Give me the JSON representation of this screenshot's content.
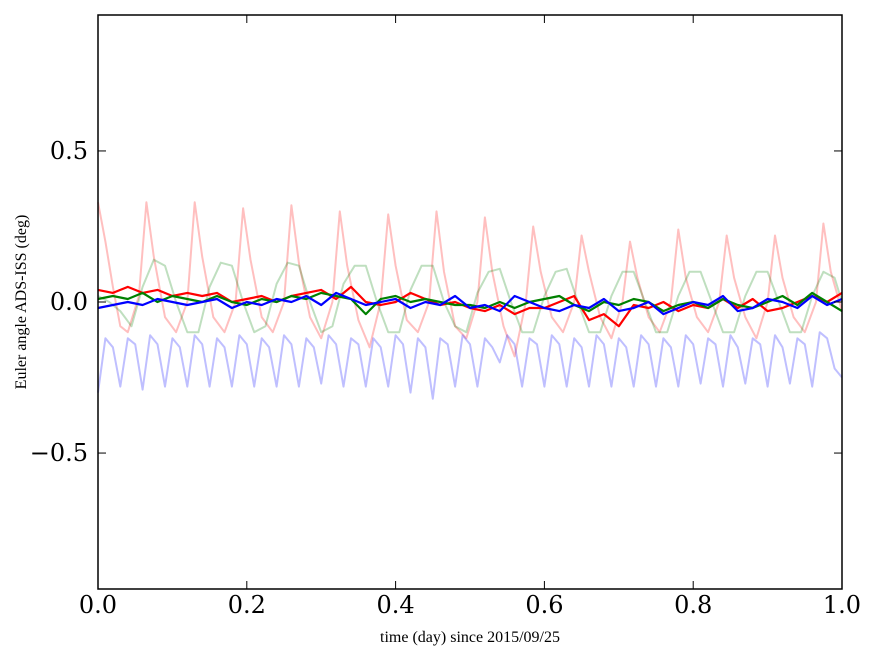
{
  "chart_data": {
    "type": "line",
    "title": "",
    "xlabel": "time (day) since 2015/09/25",
    "ylabel": "Euler angle ADS-ISS (deg)",
    "xlim": [
      0.0,
      1.0
    ],
    "ylim": [
      -0.95,
      0.95
    ],
    "xticks": [
      0.0,
      0.2,
      0.4,
      0.6,
      0.8,
      1.0
    ],
    "xtick_labels": [
      "0.0",
      "0.2",
      "0.4",
      "0.6",
      "0.8",
      "1.0"
    ],
    "yticks": [
      0.5,
      0.0,
      -0.5
    ],
    "ytick_labels": [
      "0.5",
      "0.0",
      "−0.5"
    ],
    "grid": false,
    "legend": "none",
    "series": [
      {
        "color": "#ff0000",
        "opacity": 0.25,
        "style": "raw",
        "x": [
          0.0,
          0.01,
          0.02,
          0.03,
          0.04,
          0.055,
          0.065,
          0.075,
          0.09,
          0.105,
          0.12,
          0.13,
          0.14,
          0.155,
          0.17,
          0.185,
          0.195,
          0.205,
          0.22,
          0.235,
          0.25,
          0.26,
          0.27,
          0.285,
          0.3,
          0.315,
          0.325,
          0.335,
          0.35,
          0.365,
          0.38,
          0.39,
          0.4,
          0.415,
          0.43,
          0.445,
          0.455,
          0.465,
          0.48,
          0.495,
          0.51,
          0.52,
          0.53,
          0.545,
          0.56,
          0.575,
          0.585,
          0.595,
          0.61,
          0.625,
          0.64,
          0.65,
          0.66,
          0.675,
          0.69,
          0.705,
          0.715,
          0.725,
          0.74,
          0.755,
          0.77,
          0.78,
          0.79,
          0.805,
          0.82,
          0.835,
          0.845,
          0.855,
          0.87,
          0.885,
          0.9,
          0.91,
          0.92,
          0.935,
          0.95,
          0.965,
          0.975,
          0.985,
          1.0
        ],
        "y": [
          0.33,
          0.2,
          0.05,
          -0.08,
          -0.1,
          0.02,
          0.33,
          0.15,
          -0.05,
          -0.1,
          0.0,
          0.33,
          0.15,
          -0.05,
          -0.1,
          0.0,
          0.31,
          0.14,
          -0.05,
          -0.1,
          0.0,
          0.32,
          0.13,
          -0.05,
          -0.12,
          0.0,
          0.3,
          0.12,
          -0.06,
          -0.15,
          0.0,
          0.29,
          0.12,
          -0.06,
          -0.1,
          0.0,
          0.3,
          0.1,
          -0.08,
          -0.12,
          0.0,
          0.28,
          0.1,
          -0.08,
          -0.18,
          0.0,
          0.25,
          0.1,
          -0.05,
          -0.1,
          0.0,
          0.22,
          0.1,
          -0.05,
          -0.12,
          0.0,
          0.2,
          0.08,
          -0.05,
          -0.1,
          0.0,
          0.24,
          0.08,
          -0.05,
          -0.1,
          0.0,
          0.22,
          0.08,
          -0.05,
          -0.12,
          0.0,
          0.22,
          0.08,
          -0.05,
          -0.1,
          0.0,
          0.26,
          0.1,
          -0.03
        ]
      },
      {
        "color": "#008000",
        "opacity": 0.25,
        "style": "raw",
        "x": [
          0.0,
          0.015,
          0.03,
          0.045,
          0.06,
          0.075,
          0.09,
          0.105,
          0.12,
          0.135,
          0.15,
          0.165,
          0.18,
          0.195,
          0.21,
          0.225,
          0.24,
          0.255,
          0.27,
          0.285,
          0.3,
          0.315,
          0.33,
          0.345,
          0.36,
          0.375,
          0.39,
          0.405,
          0.42,
          0.435,
          0.45,
          0.465,
          0.48,
          0.495,
          0.51,
          0.525,
          0.54,
          0.555,
          0.57,
          0.585,
          0.6,
          0.615,
          0.63,
          0.645,
          0.66,
          0.675,
          0.69,
          0.705,
          0.72,
          0.735,
          0.75,
          0.765,
          0.78,
          0.795,
          0.81,
          0.825,
          0.84,
          0.855,
          0.87,
          0.885,
          0.9,
          0.915,
          0.93,
          0.945,
          0.96,
          0.975,
          0.99,
          1.0
        ],
        "y": [
          0.02,
          0.0,
          -0.03,
          -0.08,
          0.05,
          0.14,
          0.12,
          0.0,
          -0.1,
          -0.1,
          0.05,
          0.13,
          0.12,
          0.0,
          -0.1,
          -0.08,
          0.06,
          0.13,
          0.12,
          0.0,
          -0.1,
          -0.08,
          0.06,
          0.12,
          0.12,
          0.0,
          -0.1,
          -0.1,
          0.04,
          0.12,
          0.12,
          0.0,
          -0.08,
          -0.1,
          0.03,
          0.1,
          0.11,
          0.0,
          -0.1,
          -0.1,
          0.02,
          0.1,
          0.11,
          0.0,
          -0.1,
          -0.1,
          0.02,
          0.1,
          0.1,
          0.0,
          -0.1,
          -0.1,
          0.02,
          0.1,
          0.1,
          0.0,
          -0.1,
          -0.1,
          0.02,
          0.1,
          0.1,
          0.0,
          -0.1,
          -0.1,
          0.02,
          0.1,
          0.08,
          0.0
        ]
      },
      {
        "color": "#0000ff",
        "opacity": 0.25,
        "style": "raw",
        "x": [
          0.0,
          0.01,
          0.02,
          0.03,
          0.04,
          0.05,
          0.06,
          0.07,
          0.08,
          0.09,
          0.1,
          0.11,
          0.12,
          0.13,
          0.14,
          0.15,
          0.16,
          0.17,
          0.18,
          0.19,
          0.2,
          0.21,
          0.22,
          0.23,
          0.24,
          0.25,
          0.26,
          0.27,
          0.28,
          0.29,
          0.3,
          0.31,
          0.32,
          0.33,
          0.34,
          0.35,
          0.36,
          0.37,
          0.38,
          0.39,
          0.4,
          0.41,
          0.42,
          0.43,
          0.44,
          0.45,
          0.46,
          0.47,
          0.48,
          0.49,
          0.5,
          0.51,
          0.52,
          0.53,
          0.54,
          0.55,
          0.56,
          0.57,
          0.58,
          0.59,
          0.6,
          0.61,
          0.62,
          0.63,
          0.64,
          0.65,
          0.66,
          0.67,
          0.68,
          0.69,
          0.7,
          0.71,
          0.72,
          0.73,
          0.74,
          0.75,
          0.76,
          0.77,
          0.78,
          0.79,
          0.8,
          0.81,
          0.82,
          0.83,
          0.84,
          0.85,
          0.86,
          0.87,
          0.88,
          0.89,
          0.9,
          0.91,
          0.92,
          0.93,
          0.94,
          0.95,
          0.96,
          0.97,
          0.98,
          0.99,
          1.0
        ],
        "y": [
          -0.3,
          -0.12,
          -0.15,
          -0.28,
          -0.12,
          -0.14,
          -0.29,
          -0.11,
          -0.14,
          -0.28,
          -0.12,
          -0.15,
          -0.28,
          -0.11,
          -0.14,
          -0.28,
          -0.12,
          -0.15,
          -0.28,
          -0.11,
          -0.14,
          -0.28,
          -0.12,
          -0.15,
          -0.28,
          -0.11,
          -0.14,
          -0.28,
          -0.12,
          -0.15,
          -0.27,
          -0.11,
          -0.14,
          -0.28,
          -0.12,
          -0.14,
          -0.28,
          -0.12,
          -0.15,
          -0.28,
          -0.11,
          -0.14,
          -0.3,
          -0.12,
          -0.15,
          -0.32,
          -0.12,
          -0.14,
          -0.28,
          -0.11,
          -0.14,
          -0.28,
          -0.12,
          -0.15,
          -0.2,
          -0.11,
          -0.14,
          -0.28,
          -0.12,
          -0.14,
          -0.28,
          -0.11,
          -0.14,
          -0.28,
          -0.12,
          -0.15,
          -0.28,
          -0.11,
          -0.14,
          -0.28,
          -0.12,
          -0.15,
          -0.28,
          -0.11,
          -0.14,
          -0.28,
          -0.12,
          -0.15,
          -0.28,
          -0.11,
          -0.14,
          -0.27,
          -0.12,
          -0.14,
          -0.28,
          -0.11,
          -0.15,
          -0.27,
          -0.12,
          -0.14,
          -0.28,
          -0.11,
          -0.15,
          -0.27,
          -0.12,
          -0.14,
          -0.28,
          -0.1,
          -0.12,
          -0.22,
          -0.25
        ]
      },
      {
        "color": "#ff0000",
        "opacity": 1.0,
        "style": "filtered",
        "x": [
          0.0,
          0.02,
          0.04,
          0.06,
          0.08,
          0.1,
          0.12,
          0.14,
          0.16,
          0.18,
          0.2,
          0.22,
          0.24,
          0.26,
          0.28,
          0.3,
          0.32,
          0.34,
          0.36,
          0.38,
          0.4,
          0.42,
          0.44,
          0.46,
          0.48,
          0.5,
          0.52,
          0.54,
          0.56,
          0.58,
          0.6,
          0.62,
          0.64,
          0.66,
          0.68,
          0.7,
          0.72,
          0.74,
          0.76,
          0.78,
          0.8,
          0.82,
          0.84,
          0.86,
          0.88,
          0.9,
          0.92,
          0.94,
          0.96,
          0.98,
          1.0
        ],
        "y": [
          0.04,
          0.03,
          0.05,
          0.03,
          0.04,
          0.02,
          0.03,
          0.02,
          0.03,
          0.0,
          0.01,
          0.02,
          0.0,
          0.02,
          0.03,
          0.04,
          0.01,
          0.05,
          0.0,
          -0.01,
          0.0,
          0.03,
          0.01,
          -0.01,
          0.0,
          -0.02,
          -0.03,
          -0.01,
          -0.04,
          -0.02,
          -0.02,
          0.0,
          0.02,
          -0.06,
          -0.04,
          -0.08,
          -0.01,
          -0.02,
          0.0,
          -0.03,
          -0.01,
          -0.02,
          0.01,
          -0.02,
          0.01,
          -0.03,
          -0.02,
          0.0,
          0.02,
          0.0,
          0.03
        ]
      },
      {
        "color": "#008000",
        "opacity": 1.0,
        "style": "filtered",
        "x": [
          0.0,
          0.02,
          0.04,
          0.06,
          0.08,
          0.1,
          0.12,
          0.14,
          0.16,
          0.18,
          0.2,
          0.22,
          0.24,
          0.26,
          0.28,
          0.3,
          0.32,
          0.34,
          0.36,
          0.38,
          0.4,
          0.42,
          0.44,
          0.46,
          0.48,
          0.5,
          0.52,
          0.54,
          0.56,
          0.58,
          0.6,
          0.62,
          0.64,
          0.66,
          0.68,
          0.7,
          0.72,
          0.74,
          0.76,
          0.78,
          0.8,
          0.82,
          0.84,
          0.86,
          0.88,
          0.9,
          0.92,
          0.94,
          0.96,
          0.98,
          1.0
        ],
        "y": [
          0.01,
          0.02,
          0.01,
          0.03,
          0.0,
          0.02,
          0.01,
          0.0,
          0.02,
          0.0,
          -0.01,
          0.01,
          0.0,
          0.02,
          0.01,
          0.03,
          0.02,
          0.01,
          -0.04,
          0.01,
          0.02,
          0.0,
          0.01,
          0.0,
          -0.01,
          -0.01,
          -0.02,
          0.0,
          -0.02,
          0.0,
          0.01,
          0.02,
          -0.01,
          -0.03,
          0.0,
          -0.01,
          0.01,
          0.0,
          -0.03,
          -0.01,
          0.0,
          -0.02,
          0.01,
          -0.01,
          -0.02,
          0.0,
          0.02,
          -0.01,
          0.03,
          0.0,
          -0.03
        ]
      },
      {
        "color": "#0000ff",
        "opacity": 1.0,
        "style": "filtered",
        "x": [
          0.0,
          0.02,
          0.04,
          0.06,
          0.08,
          0.1,
          0.12,
          0.14,
          0.16,
          0.18,
          0.2,
          0.22,
          0.24,
          0.26,
          0.28,
          0.3,
          0.32,
          0.34,
          0.36,
          0.38,
          0.4,
          0.42,
          0.44,
          0.46,
          0.48,
          0.5,
          0.52,
          0.54,
          0.56,
          0.58,
          0.6,
          0.62,
          0.64,
          0.66,
          0.68,
          0.7,
          0.72,
          0.74,
          0.76,
          0.78,
          0.8,
          0.82,
          0.84,
          0.86,
          0.88,
          0.9,
          0.92,
          0.94,
          0.96,
          0.98,
          1.0
        ],
        "y": [
          -0.02,
          -0.01,
          0.0,
          -0.01,
          0.01,
          0.0,
          -0.01,
          0.0,
          0.01,
          -0.02,
          0.0,
          -0.01,
          0.01,
          0.0,
          0.02,
          -0.01,
          0.03,
          0.01,
          -0.01,
          0.0,
          0.01,
          -0.02,
          0.0,
          -0.01,
          0.02,
          -0.02,
          -0.01,
          -0.03,
          0.02,
          0.0,
          -0.02,
          -0.03,
          -0.01,
          -0.02,
          0.01,
          -0.03,
          -0.02,
          0.0,
          -0.04,
          -0.02,
          0.0,
          -0.01,
          0.02,
          -0.03,
          -0.02,
          0.01,
          0.0,
          -0.02,
          0.02,
          -0.01,
          0.01
        ]
      }
    ]
  }
}
